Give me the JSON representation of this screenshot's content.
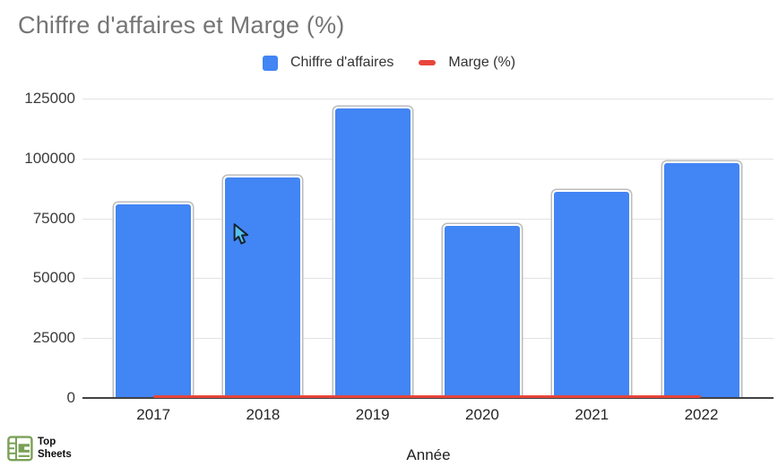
{
  "header": {
    "title": "Chiffre d'affaires et Marge (%)"
  },
  "legend": {
    "items": [
      {
        "label": "Chiffre d'affaires",
        "swatch": "square",
        "color": "#4285F4"
      },
      {
        "label": "Marge (%)",
        "swatch": "dash",
        "color": "#E8453C"
      }
    ]
  },
  "axis": {
    "x_title": "Année"
  },
  "watermark": {
    "line1": "Top",
    "line2": "Sheets"
  },
  "colors": {
    "bar_blue": "#4285F4",
    "bar_border_gray": "#BDBDBD",
    "marge_red": "#E8453C",
    "title_gray": "#757575",
    "gridline_gray": "#E3E3E3",
    "axis_dark": "#424242",
    "logo_green": "#7AA157",
    "cursor_blue": "#55C1EF"
  },
  "chart_data": {
    "type": "bar",
    "title": "Chiffre d'affaires et Marge (%)",
    "categories": [
      "2017",
      "2018",
      "2019",
      "2020",
      "2021",
      "2022"
    ],
    "series": [
      {
        "name": "Chiffre d'affaires",
        "type": "bar",
        "color": "#4285F4",
        "values": [
          81000,
          92000,
          121000,
          72000,
          86000,
          98000
        ]
      },
      {
        "name": "Marge (%)",
        "type": "line",
        "color": "#E8453C",
        "values": [
          0,
          0,
          0,
          0,
          0,
          0
        ],
        "note": "Percentage series renders flat at ~0 on the shared 0-125000 axis; exact percentages not readable in the image."
      }
    ],
    "xlabel": "Année",
    "ylabel": "",
    "ylim": [
      0,
      125000
    ],
    "yticks": [
      0,
      25000,
      50000,
      75000,
      100000,
      125000
    ],
    "grid": true,
    "legend_position": "top"
  }
}
